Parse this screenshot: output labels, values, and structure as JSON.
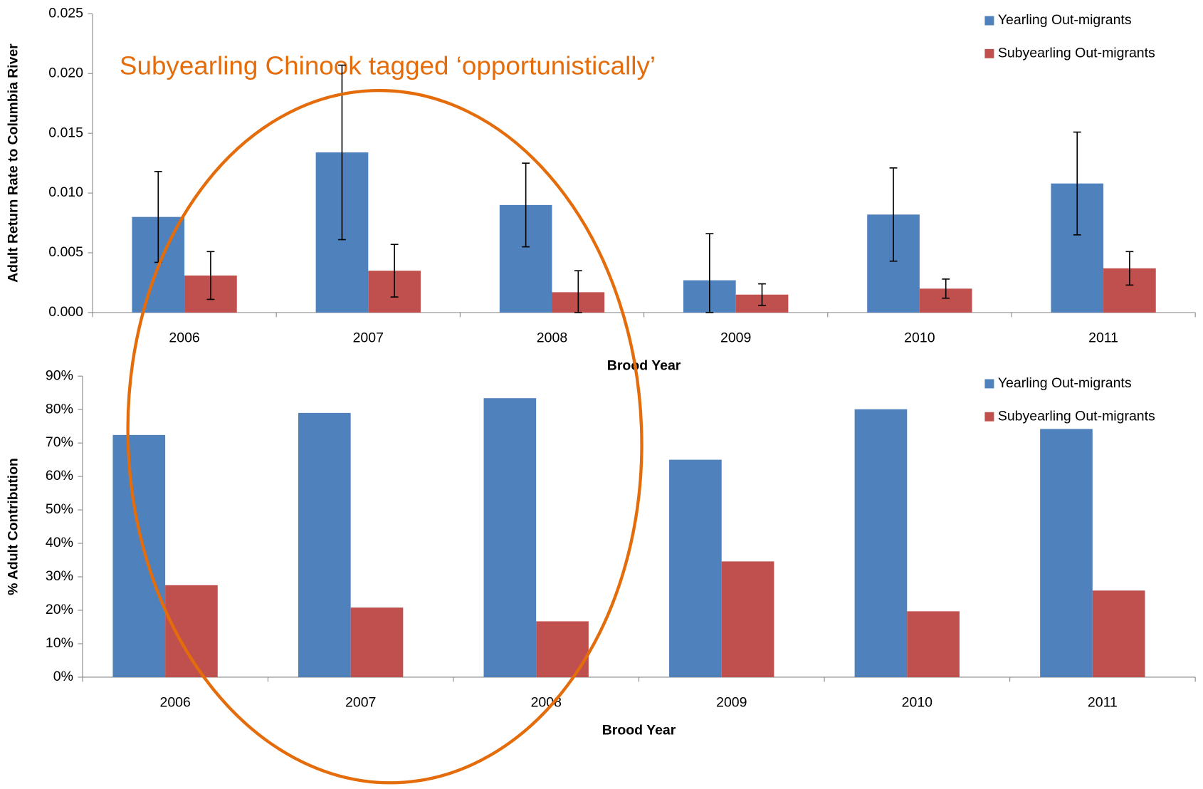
{
  "chart_data": [
    {
      "type": "bar",
      "annotation": "Subyearling Chinook tagged ‘opportunistically’",
      "y_label": "Adult Return Rate to Columbia River",
      "x_label": "Brood Year",
      "categories": [
        "2006",
        "2007",
        "2008",
        "2009",
        "2010",
        "2011"
      ],
      "series": [
        {
          "name": "Yearling Out-migrants",
          "color": "#4f81bd",
          "values": [
            0.008,
            0.0134,
            0.009,
            0.0027,
            0.0082,
            0.0108
          ],
          "errors": [
            0.0038,
            0.0073,
            0.0035,
            0.0039,
            0.0039,
            0.0043
          ]
        },
        {
          "name": "Subyearling Out-migrants",
          "color": "#c0504d",
          "values": [
            0.0031,
            0.0035,
            0.0017,
            0.0015,
            0.002,
            0.0037
          ],
          "errors": [
            0.002,
            0.0022,
            0.0018,
            0.0009,
            0.0008,
            0.0014
          ]
        }
      ],
      "ylim": [
        0,
        0.025
      ],
      "yticks": [
        {
          "value": 0,
          "label": "0.000"
        },
        0.005,
        {
          "value": 0.01,
          "label": "0.010"
        },
        0.015,
        {
          "value": 0.02,
          "label": "0.020"
        },
        0.025
      ],
      "legend": "top-right"
    },
    {
      "type": "bar",
      "y_label": "% Adult Contribution",
      "x_label": "Brood Year",
      "categories": [
        "2006",
        "2007",
        "2008",
        "2009",
        "2010",
        "2011"
      ],
      "series": [
        {
          "name": "Yearling Out-migrants",
          "color": "#4f81bd",
          "values": [
            72.4,
            79,
            83.4,
            65,
            80.1,
            74.2
          ]
        },
        {
          "name": "Subyearling Out-migrants",
          "color": "#c0504d",
          "values": [
            27.5,
            20.8,
            16.7,
            34.6,
            19.7,
            25.9
          ]
        }
      ],
      "ylim": [
        0,
        90
      ],
      "yticks": [
        {
          "value": 0,
          "label": "0%"
        },
        {
          "value": 10,
          "label": "10%"
        },
        {
          "value": 20,
          "label": "20%"
        },
        {
          "value": 30,
          "label": "30%"
        },
        {
          "value": 40,
          "label": "40%"
        },
        {
          "value": 50,
          "label": "50%"
        },
        {
          "value": 60,
          "label": "60%"
        },
        {
          "value": 70,
          "label": "70%"
        },
        {
          "value": 80,
          "label": "80%"
        },
        {
          "value": 90,
          "label": "90%"
        }
      ],
      "legend": "top-right"
    }
  ]
}
